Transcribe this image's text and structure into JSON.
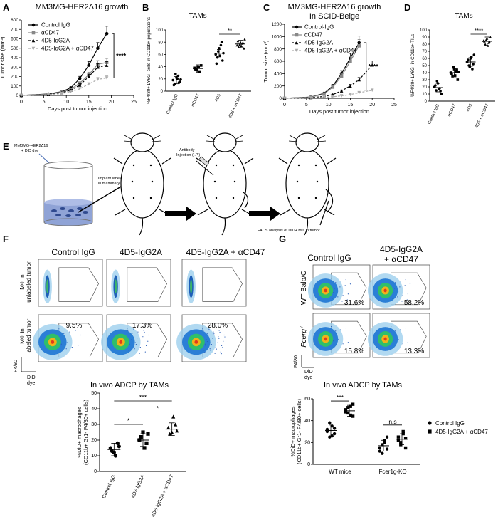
{
  "panels": {
    "A": {
      "letter": "A",
      "title": "MM3MG-HER2Δ16 growth"
    },
    "B": {
      "letter": "B",
      "title": "TAMs"
    },
    "C": {
      "letter": "C",
      "title": "MM3MG-HER2Δ16 growth",
      "subtitle": "In SCID-Beige"
    },
    "D": {
      "letter": "D",
      "title": "TAMs"
    },
    "E": {
      "letter": "E"
    },
    "F": {
      "letter": "F"
    },
    "G": {
      "letter": "G"
    }
  },
  "schematic": {
    "label_cells": "MM3MG-HER2Δ16",
    "label_dye": "+ DiD dye",
    "label_implant": "Implant labeled BC",
    "label_implant2": "in mammary fatpad",
    "label_antibody": "Antibody",
    "label_injection": "Injection (I.P.)",
    "label_facs": "FACS analysis of DiD+ MΦ in tumor"
  },
  "flow_F": {
    "col_labels": [
      "Control IgG",
      "4D5-IgG2A",
      "4D5-IgG2A + αCD47"
    ],
    "row1_label": "MΦ in",
    "row1_label2": "unlabeled tumor",
    "row2_label": "MΦ in",
    "row2_label2": "labeled tumor",
    "row2_percents": [
      "9.5%",
      "17.3%",
      "28.0%"
    ],
    "y_axis": "F4/80",
    "x_axis": "DiD",
    "x_axis2": "dye"
  },
  "flow_G": {
    "col_labels": [
      "Control IgG",
      "4D5-IgG2A"
    ],
    "col2_label2": "+ αCD47",
    "row1_label": "WT Balb/C",
    "row2_label": "Fcerg",
    "row2_sup": "-/-",
    "row1_percents": [
      "31.6%",
      "58.2%"
    ],
    "row2_percents": [
      "15.8%",
      "13.3%"
    ],
    "y_axis": "F4/80",
    "x_axis": "DiD",
    "x_axis2": "dye"
  },
  "chart_data": [
    {
      "id": "A",
      "type": "line",
      "title": "MM3MG-HER2Δ16 growth",
      "xlabel": "Days post tumor injection",
      "ylabel": "Tumor size (mm³)",
      "xlim": [
        0,
        25
      ],
      "ylim": [
        0,
        800
      ],
      "xticks": [
        0,
        5,
        10,
        15,
        20,
        25
      ],
      "yticks": [
        0,
        100,
        200,
        300,
        400,
        500,
        600,
        700,
        800
      ],
      "significance": "****",
      "series": [
        {
          "name": "Control IgG",
          "x": [
            0,
            6,
            9,
            11,
            13,
            15,
            17,
            19
          ],
          "y": [
            0,
            15,
            40,
            80,
            180,
            320,
            500,
            655
          ]
        },
        {
          "name": "αCD47",
          "x": [
            0,
            6,
            9,
            11,
            13,
            15,
            17,
            19
          ],
          "y": [
            0,
            12,
            35,
            65,
            130,
            220,
            330,
            350
          ]
        },
        {
          "name": "4D5-IgG2A",
          "x": [
            0,
            6,
            9,
            11,
            13,
            15,
            17,
            19
          ],
          "y": [
            0,
            10,
            30,
            55,
            110,
            200,
            300,
            320
          ]
        },
        {
          "name": "4D5-IgG2A + αCD47",
          "x": [
            0,
            6,
            9,
            11,
            13,
            15,
            17,
            19
          ],
          "y": [
            0,
            8,
            20,
            40,
            70,
            120,
            170,
            185
          ]
        }
      ]
    },
    {
      "id": "B",
      "type": "scatter",
      "title": "TAMs",
      "ylabel": "%F4/80+ LY6G- cells in CD11b+ populations",
      "ylim": [
        0,
        100
      ],
      "yticks": [
        0,
        20,
        40,
        60,
        80,
        100
      ],
      "categories": [
        "Control IgG",
        "αCD47",
        "4D5",
        "4D5 + αCD47"
      ],
      "significance": "**",
      "values": [
        [
          18,
          12,
          22,
          25,
          15,
          10,
          28,
          20,
          14,
          19
        ],
        [
          38,
          35,
          40,
          32,
          42,
          36,
          34,
          39
        ],
        [
          60,
          55,
          70,
          75,
          50,
          45,
          65,
          58,
          80,
          62
        ],
        [
          75,
          72,
          80,
          78,
          70,
          82,
          76,
          74,
          79,
          85
        ]
      ],
      "means": [
        18,
        37,
        62,
        77
      ]
    },
    {
      "id": "C",
      "type": "line",
      "title": "MM3MG-HER2Δ16 growth",
      "subtitle": "In SCID-Beige",
      "xlabel": "Days post tumor injection",
      "ylabel": "Tumor size (mm³)",
      "xlim": [
        0,
        25
      ],
      "ylim": [
        0,
        1200
      ],
      "xticks": [
        0,
        5,
        10,
        15,
        20,
        25
      ],
      "yticks": [
        0,
        200,
        400,
        600,
        800,
        1000,
        1200
      ],
      "significance": "****",
      "series": [
        {
          "name": "Control-IgG",
          "x": [
            0,
            6,
            9,
            11,
            13,
            15,
            17
          ],
          "y": [
            0,
            20,
            80,
            200,
            400,
            650,
            900
          ]
        },
        {
          "name": "αCD47",
          "x": [
            0,
            6,
            9,
            11,
            13,
            15,
            17
          ],
          "y": [
            0,
            18,
            70,
            180,
            360,
            600,
            850
          ]
        },
        {
          "name": "4D5-IgG2A",
          "x": [
            0,
            6,
            9,
            11,
            13,
            15,
            17,
            20
          ],
          "y": [
            0,
            10,
            30,
            60,
            120,
            200,
            300,
            540
          ]
        },
        {
          "name": "4D5-IgG2A + αCD47",
          "x": [
            0,
            6,
            9,
            11,
            13,
            15,
            17,
            20
          ],
          "y": [
            0,
            5,
            15,
            25,
            40,
            60,
            90,
            130
          ]
        }
      ]
    },
    {
      "id": "D",
      "type": "scatter",
      "title": "TAMs",
      "ylabel": "%F4/80+ LY6G- in CD11b+ TILs",
      "ylim": [
        0,
        100
      ],
      "yticks": [
        0,
        10,
        20,
        30,
        40,
        50,
        60,
        70,
        80,
        90,
        100
      ],
      "categories": [
        "Control IgG",
        "αCD47",
        "4D5",
        "4D5 + αCD47"
      ],
      "significance": "****",
      "values": [
        [
          20,
          15,
          25,
          18,
          10,
          22,
          28,
          17,
          14
        ],
        [
          40,
          35,
          45,
          42,
          30,
          38,
          48,
          36,
          44,
          41
        ],
        [
          55,
          50,
          60,
          45,
          65,
          58,
          48,
          62,
          52
        ],
        [
          85,
          80,
          88,
          82,
          90,
          84,
          86,
          78,
          83
        ]
      ],
      "means": [
        19,
        40,
        55,
        84
      ]
    },
    {
      "id": "F-bottom",
      "type": "scatter",
      "title": "In vivo ADCP by TAMs",
      "ylabel": "%DiD+ macrophages (CD11b+ Gr1- F4/80+ cells)",
      "ylim": [
        0,
        50
      ],
      "yticks": [
        0,
        10,
        20,
        30,
        40,
        50
      ],
      "categories": [
        "Control IgG",
        "4D5-IgG2A",
        "4D5-IgG2A + αCD47"
      ],
      "sig_pairs": [
        {
          "from": 0,
          "to": 1,
          "label": "*"
        },
        {
          "from": 1,
          "to": 2,
          "label": "*"
        },
        {
          "from": 0,
          "to": 2,
          "label": "***"
        }
      ],
      "values": [
        [
          15,
          12,
          18,
          13,
          10,
          16
        ],
        [
          20,
          25,
          18,
          22,
          15,
          24
        ],
        [
          28,
          25,
          30,
          24,
          35,
          26
        ]
      ],
      "means": [
        14,
        20,
        27
      ]
    },
    {
      "id": "G-bottom",
      "type": "scatter",
      "title": "In vivo ADCP by TAMs",
      "ylabel": "%DiD+ macrophages (CD11b+ Gr1- F4/80+ cells)",
      "ylim": [
        0,
        60
      ],
      "yticks": [
        0,
        20,
        40,
        60
      ],
      "categories": [
        "WT mice",
        "Fcer1g-KO"
      ],
      "legend": [
        "Control IgG",
        "4D5-IgG2A + αCD47"
      ],
      "sig_pairs": [
        {
          "group": 0,
          "label": "***"
        },
        {
          "group": 1,
          "label": "n.s"
        }
      ],
      "values": [
        [
          [
            30,
            25,
            35,
            28,
            32,
            38,
            26,
            33
          ],
          [
            48,
            52,
            45,
            55,
            50,
            47,
            53,
            44
          ]
        ],
        [
          [
            15,
            10,
            20,
            25,
            12,
            18,
            22,
            14
          ],
          [
            22,
            18,
            28,
            15,
            25,
            20,
            30,
            24
          ]
        ]
      ],
      "means": [
        [
          31,
          49
        ],
        [
          17,
          23
        ]
      ]
    }
  ]
}
